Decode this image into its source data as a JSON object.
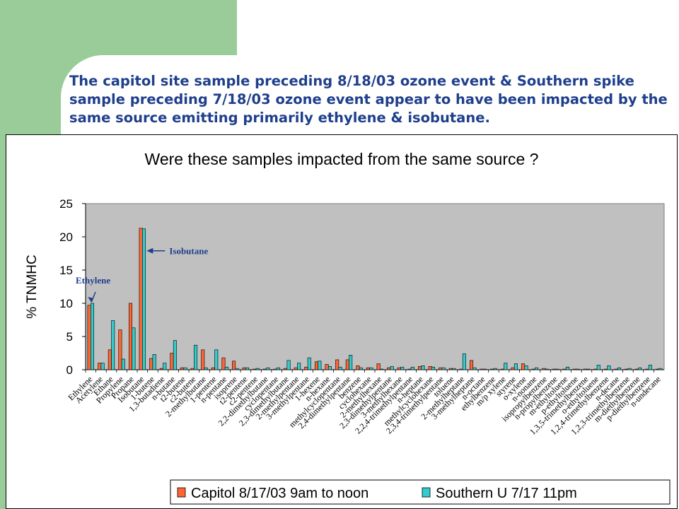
{
  "slide": {
    "title": "The capitol site sample preceding 8/18/03 ozone event & Southern spike sample preceding 7/18/03 ozone event appear to have been impacted by the same source emitting primarily ethylene & isobutane."
  },
  "chart_data": {
    "type": "bar",
    "title": "Were these samples impacted from the same source ?",
    "xlabel": "",
    "ylabel": "% TNMHC",
    "ylim": [
      0,
      25
    ],
    "yticks": [
      0,
      5,
      10,
      15,
      20,
      25
    ],
    "grid": false,
    "legend_position": "bottom",
    "plot_background": "#c0c0c0",
    "categories": [
      "Ethylene",
      "Acetylene",
      "Ethane",
      "Propylene",
      "Propane",
      "Isobutane",
      "1-butene",
      "1,3-butadiene",
      "n-butane",
      "t2-butene",
      "c2-butene",
      "2-methylbutane",
      "1-pentene",
      "n-pentane",
      "isoprene",
      "t2-pentene",
      "c2-pentene",
      "2,2-dimethylbutane",
      "cyclopentane",
      "2,3-dimethylbutane",
      "2-methylpentane",
      "3-methylpentane",
      "1-hexene",
      "n-hexane",
      "methylcyclopentane",
      "2,4-dimethylpentane",
      "benzene",
      "cyclohexane",
      "2-methylhexane",
      "2,3-dimethylpentane",
      "3-methylhexane",
      "2,2,4-trimethylpentane",
      "n-heptane",
      "methylcyclohexane",
      "2,3,4-trimethylpentane",
      "toluene",
      "2-methylheptane",
      "3-methylheptane",
      "n-octane",
      "ethylbenzene",
      "m/p xylene",
      "styrene",
      "o-xylene",
      "n-nonane",
      "isopropylbenzene",
      "n-propylbenzene",
      "m-ethyltoluene",
      "p-ethyltoluene",
      "1,3,5-trimethylbenzene",
      "o-ethyltoluene",
      "1,2,4-trimethylbenzene",
      "n-decane",
      "1,2,3-trimethylbenzene",
      "m-diethylbenzene",
      "p-diethylbenzene",
      "n-undecane"
    ],
    "series": [
      {
        "name": "Capitol 8/17/03 9am to noon",
        "color": "#ff6633",
        "values": [
          9.7,
          1.0,
          3.0,
          6.0,
          10.0,
          21.3,
          1.7,
          0.2,
          2.5,
          0.3,
          0.2,
          3.0,
          0.3,
          1.8,
          1.3,
          0.3,
          0.1,
          0.1,
          0.1,
          0.2,
          0.3,
          0.4,
          1.2,
          0.8,
          1.5,
          1.5,
          0.6,
          0.3,
          0.9,
          0.3,
          0.3,
          0.1,
          0.5,
          0.5,
          0.3,
          0.2,
          0.1,
          1.4,
          0.1,
          0.1,
          0.1,
          0.3,
          0.9,
          0.1,
          0.2,
          0.1,
          0.1,
          0.1,
          0.1,
          0.1,
          0.1,
          0.1,
          0.1,
          0.1,
          0.1,
          0.1
        ]
      },
      {
        "name": "Southern U 7/17 11pm",
        "color": "#33cccc",
        "values": [
          10.0,
          1.0,
          7.4,
          1.6,
          6.3,
          21.2,
          2.3,
          1.0,
          4.4,
          0.3,
          3.7,
          0.3,
          3.0,
          0.4,
          0.2,
          0.3,
          0.2,
          0.3,
          0.3,
          1.4,
          1.0,
          1.8,
          1.3,
          0.5,
          0.4,
          2.2,
          0.3,
          0.3,
          0.1,
          0.5,
          0.4,
          0.4,
          0.6,
          0.4,
          0.3,
          0.2,
          2.4,
          0.3,
          0.1,
          0.2,
          1.0,
          0.9,
          0.6,
          0.3,
          0.1,
          0.1,
          0.4,
          0.1,
          0.1,
          0.7,
          0.6,
          0.3,
          0.2,
          0.3,
          0.7,
          0.2
        ]
      }
    ],
    "annotations": [
      {
        "text": "Ethylene",
        "target": "Ethylene"
      },
      {
        "text": "Isobutane",
        "target": "Isobutane"
      }
    ]
  }
}
